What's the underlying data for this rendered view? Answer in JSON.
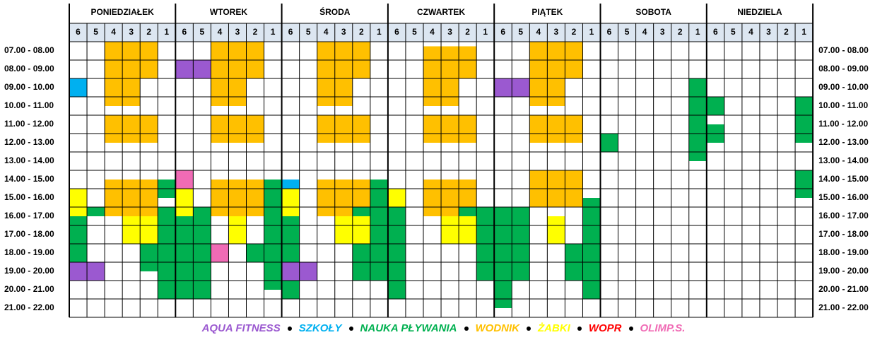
{
  "days": [
    "PONIEDZIAŁEK",
    "WTOREK",
    "ŚRODA",
    "CZWARTEK",
    "PIĄTEK",
    "SOBOTA",
    "NIEDZIELA"
  ],
  "lanes": [
    6,
    5,
    4,
    3,
    2,
    1
  ],
  "hours": [
    "07.00 - 08.00",
    "08.00 - 09.00",
    "09.00 - 10.00",
    "10.00 - 11.00",
    "11.00 - 12.00",
    "12.00 - 13.00",
    "13.00 - 14.00",
    "14.00 - 15.00",
    "15.00 - 16.00",
    "16.00 - 17.00",
    "17.00 - 18.00",
    "18.00 - 19.00",
    "19.00 - 20.00",
    "20.00 - 21.00",
    "21.00 - 22.00"
  ],
  "legend": [
    {
      "label": "AQUA FITNESS",
      "color": "#9b59d0"
    },
    {
      "label": "SZKOŁY",
      "color": "#00b0f0"
    },
    {
      "label": "NAUKA PŁYWANIA",
      "color": "#00b050"
    },
    {
      "label": "WODNIK",
      "color": "#ffc000"
    },
    {
      "label": "ŻABKI",
      "color": "#ffff00"
    },
    {
      "label": "WOPR",
      "color": "#ff0000"
    },
    {
      "label": "OLIMP.S.",
      "color": "#f06bb5"
    }
  ],
  "bookings": [
    {
      "day": 0,
      "lanes": [
        4,
        3
      ],
      "start": 7,
      "end": 10.5,
      "group": 3
    },
    {
      "day": 0,
      "lanes": [
        2
      ],
      "start": 7,
      "end": 9,
      "group": 3
    },
    {
      "day": 0,
      "lanes": [
        4,
        3,
        2
      ],
      "start": 11,
      "end": 12.5,
      "group": 3
    },
    {
      "day": 0,
      "lanes": [
        6
      ],
      "start": 9,
      "end": 10,
      "group": 1
    },
    {
      "day": 0,
      "lanes": [
        4,
        3,
        2
      ],
      "start": 14.5,
      "end": 16.5,
      "group": 3
    },
    {
      "day": 0,
      "lanes": [
        1
      ],
      "start": 14.5,
      "end": 15.5,
      "group": 2
    },
    {
      "day": 0,
      "lanes": [
        1
      ],
      "start": 16,
      "end": 21,
      "group": 2
    },
    {
      "day": 0,
      "lanes": [
        6
      ],
      "start": 15,
      "end": 16.5,
      "group": 4
    },
    {
      "day": 0,
      "lanes": [
        6
      ],
      "start": 16.5,
      "end": 19,
      "group": 2
    },
    {
      "day": 0,
      "lanes": [
        5
      ],
      "start": 16,
      "end": 16.5,
      "group": 2
    },
    {
      "day": 0,
      "lanes": [
        6,
        5
      ],
      "start": 19,
      "end": 20,
      "group": 0
    },
    {
      "day": 0,
      "lanes": [
        3,
        2
      ],
      "start": 16.5,
      "end": 18,
      "group": 4
    },
    {
      "day": 0,
      "lanes": [
        2
      ],
      "start": 18,
      "end": 19.5,
      "group": 2
    },
    {
      "day": 1,
      "lanes": [
        6,
        5
      ],
      "start": 8,
      "end": 9,
      "group": 0
    },
    {
      "day": 1,
      "lanes": [
        4,
        3
      ],
      "start": 7,
      "end": 10.5,
      "group": 3
    },
    {
      "day": 1,
      "lanes": [
        2
      ],
      "start": 7,
      "end": 9,
      "group": 3
    },
    {
      "day": 1,
      "lanes": [
        4,
        3,
        2
      ],
      "start": 11,
      "end": 12.5,
      "group": 3
    },
    {
      "day": 1,
      "lanes": [
        6
      ],
      "start": 14,
      "end": 15,
      "group": 6
    },
    {
      "day": 1,
      "lanes": [
        6
      ],
      "start": 15,
      "end": 16.5,
      "group": 4
    },
    {
      "day": 1,
      "lanes": [
        6
      ],
      "start": 16.5,
      "end": 21,
      "group": 2
    },
    {
      "day": 1,
      "lanes": [
        5
      ],
      "start": 16,
      "end": 21,
      "group": 2
    },
    {
      "day": 1,
      "lanes": [
        4,
        3,
        2
      ],
      "start": 14.5,
      "end": 16.5,
      "group": 3
    },
    {
      "day": 1,
      "lanes": [
        1
      ],
      "start": 14.5,
      "end": 20.5,
      "group": 2
    },
    {
      "day": 1,
      "lanes": [
        3
      ],
      "start": 16.5,
      "end": 18,
      "group": 4
    },
    {
      "day": 1,
      "lanes": [
        4
      ],
      "start": 18,
      "end": 19,
      "group": 6
    },
    {
      "day": 1,
      "lanes": [
        2
      ],
      "start": 18,
      "end": 19,
      "group": 2
    },
    {
      "day": 2,
      "lanes": [
        4,
        3
      ],
      "start": 7,
      "end": 10.5,
      "group": 3
    },
    {
      "day": 2,
      "lanes": [
        2
      ],
      "start": 7,
      "end": 9,
      "group": 3
    },
    {
      "day": 2,
      "lanes": [
        4,
        3,
        2
      ],
      "start": 11,
      "end": 12.5,
      "group": 3
    },
    {
      "day": 2,
      "lanes": [
        6
      ],
      "start": 14.5,
      "end": 15,
      "group": 1
    },
    {
      "day": 2,
      "lanes": [
        6
      ],
      "start": 15,
      "end": 16.5,
      "group": 4
    },
    {
      "day": 2,
      "lanes": [
        6
      ],
      "start": 16.5,
      "end": 19,
      "group": 2
    },
    {
      "day": 2,
      "lanes": [
        6,
        5
      ],
      "start": 19,
      "end": 20,
      "group": 0
    },
    {
      "day": 2,
      "lanes": [
        6
      ],
      "start": 20,
      "end": 21,
      "group": 2
    },
    {
      "day": 2,
      "lanes": [
        4,
        3,
        2
      ],
      "start": 14.5,
      "end": 16.5,
      "group": 3
    },
    {
      "day": 2,
      "lanes": [
        1
      ],
      "start": 14.5,
      "end": 20,
      "group": 2
    },
    {
      "day": 2,
      "lanes": [
        2
      ],
      "start": 16,
      "end": 16.5,
      "group": 2
    },
    {
      "day": 2,
      "lanes": [
        3,
        2
      ],
      "start": 16.5,
      "end": 18,
      "group": 4
    },
    {
      "day": 2,
      "lanes": [
        2
      ],
      "start": 18,
      "end": 20,
      "group": 2
    },
    {
      "day": 3,
      "lanes": [
        4,
        3
      ],
      "start": 7.25,
      "end": 10.5,
      "group": 3
    },
    {
      "day": 3,
      "lanes": [
        2
      ],
      "start": 7.25,
      "end": 9,
      "group": 3
    },
    {
      "day": 3,
      "lanes": [
        4,
        3,
        2
      ],
      "start": 11,
      "end": 12.5,
      "group": 3
    },
    {
      "day": 3,
      "lanes": [
        6
      ],
      "start": 15,
      "end": 16,
      "group": 4
    },
    {
      "day": 3,
      "lanes": [
        6
      ],
      "start": 16,
      "end": 21,
      "group": 2
    },
    {
      "day": 3,
      "lanes": [
        4,
        3
      ],
      "start": 14.5,
      "end": 16.5,
      "group": 3
    },
    {
      "day": 3,
      "lanes": [
        2
      ],
      "start": 14.5,
      "end": 16,
      "group": 3
    },
    {
      "day": 3,
      "lanes": [
        2
      ],
      "start": 16,
      "end": 16.5,
      "group": 2
    },
    {
      "day": 3,
      "lanes": [
        3,
        2
      ],
      "start": 16.5,
      "end": 18,
      "group": 4
    },
    {
      "day": 3,
      "lanes": [
        1
      ],
      "start": 16,
      "end": 20,
      "group": 2
    },
    {
      "day": 4,
      "lanes": [
        6,
        5
      ],
      "start": 9,
      "end": 10,
      "group": 0
    },
    {
      "day": 4,
      "lanes": [
        4,
        3
      ],
      "start": 7,
      "end": 10.5,
      "group": 3
    },
    {
      "day": 4,
      "lanes": [
        2
      ],
      "start": 7,
      "end": 9,
      "group": 3
    },
    {
      "day": 4,
      "lanes": [
        4,
        3,
        2
      ],
      "start": 11,
      "end": 12.5,
      "group": 3
    },
    {
      "day": 4,
      "lanes": [
        4,
        3,
        2
      ],
      "start": 14,
      "end": 16,
      "group": 3
    },
    {
      "day": 4,
      "lanes": [
        6
      ],
      "start": 16,
      "end": 21.5,
      "group": 2
    },
    {
      "day": 4,
      "lanes": [
        5
      ],
      "start": 16,
      "end": 20,
      "group": 2
    },
    {
      "day": 4,
      "lanes": [
        3
      ],
      "start": 16.5,
      "end": 18,
      "group": 4
    },
    {
      "day": 4,
      "lanes": [
        2
      ],
      "start": 18,
      "end": 20,
      "group": 2
    },
    {
      "day": 4,
      "lanes": [
        1
      ],
      "start": 15.5,
      "end": 21,
      "group": 2
    },
    {
      "day": 5,
      "lanes": [
        6
      ],
      "start": 12,
      "end": 13,
      "group": 2
    },
    {
      "day": 5,
      "lanes": [
        1
      ],
      "start": 9,
      "end": 13.5,
      "group": 2
    },
    {
      "day": 6,
      "lanes": [
        6
      ],
      "start": 10,
      "end": 11,
      "group": 2
    },
    {
      "day": 6,
      "lanes": [
        6
      ],
      "start": 11.5,
      "end": 12.5,
      "group": 2
    },
    {
      "day": 6,
      "lanes": [
        1
      ],
      "start": 10,
      "end": 12.5,
      "group": 2
    },
    {
      "day": 6,
      "lanes": [
        1
      ],
      "start": 14,
      "end": 15.5,
      "group": 2
    }
  ]
}
